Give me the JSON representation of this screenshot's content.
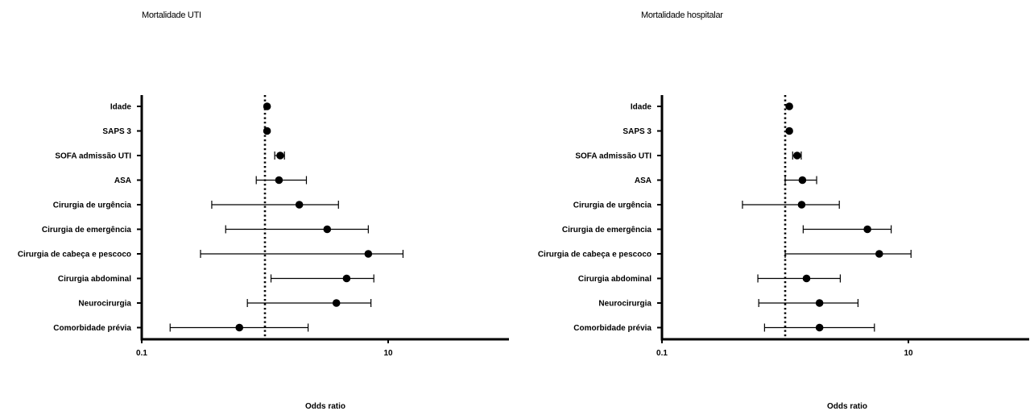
{
  "chart_data": [
    {
      "type": "scatter",
      "title": "Mortalidade UTI",
      "xlabel": "Odds ratio",
      "xscale": "log",
      "xlim": [
        0.1,
        100
      ],
      "xticks": [
        "0.1",
        "10"
      ],
      "reference_line": 1,
      "legend": "none",
      "grid": false,
      "categories": [
        "Idade",
        "SAPS 3",
        "SOFA admissão UTI",
        "ASA",
        "Cirurgia de urgência",
        "Cirurgia de emergência",
        "Cirurgia de cabeça e pescoco",
        "Cirurgia abdominal",
        "Neurocirurgia",
        "Comorbidade prévia"
      ],
      "or": [
        1.04,
        1.04,
        1.33,
        1.3,
        1.9,
        3.2,
        6.9,
        4.6,
        3.8,
        0.62
      ],
      "lower": [
        null,
        null,
        1.2,
        0.85,
        0.37,
        0.48,
        0.3,
        1.12,
        0.72,
        0.17
      ],
      "upper": [
        null,
        null,
        1.44,
        2.17,
        3.95,
        6.9,
        13.2,
        7.65,
        7.25,
        2.24
      ]
    },
    {
      "type": "scatter",
      "title": "Mortalidade hospitalar",
      "xlabel": "Odds ratio",
      "xscale": "log",
      "xlim": [
        0.1,
        100
      ],
      "xticks": [
        "0.1",
        "10"
      ],
      "reference_line": 1,
      "legend": "none",
      "grid": false,
      "categories": [
        "Idade",
        "SAPS 3",
        "SOFA admissão UTI",
        "ASA",
        "Cirurgia de urgência",
        "Cirurgia de emergência",
        "Cirurgia de cabeça e pescoco",
        "Cirurgia abdominal",
        "Neurocirurgia",
        "Comorbidade prévia"
      ],
      "or": [
        1.08,
        1.08,
        1.25,
        1.38,
        1.36,
        4.65,
        5.8,
        1.49,
        1.9,
        1.9
      ],
      "lower": [
        null,
        null,
        1.15,
        1.0,
        0.45,
        1.4,
        1.0,
        0.6,
        0.61,
        0.68
      ],
      "upper": [
        null,
        null,
        1.35,
        1.8,
        2.75,
        7.25,
        10.5,
        2.8,
        3.9,
        5.3
      ]
    }
  ]
}
